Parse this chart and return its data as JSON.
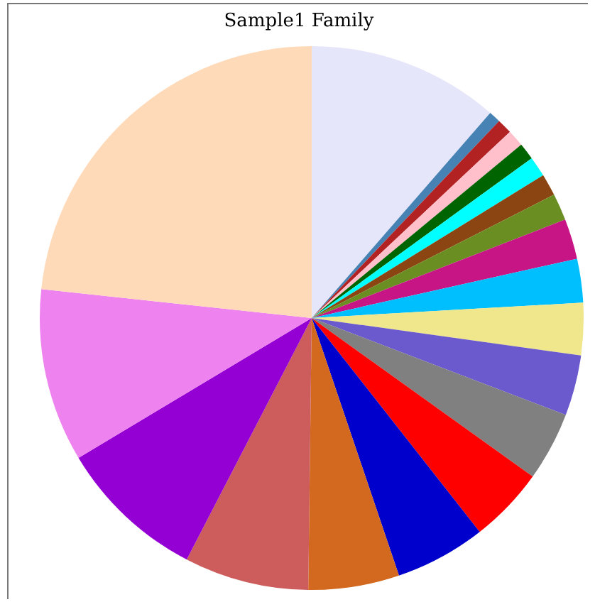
{
  "chart_data": {
    "type": "pie",
    "title": "Sample1 Family",
    "categories": [
      null,
      null,
      null,
      null,
      null,
      null,
      null,
      null,
      null,
      null,
      null,
      null,
      null,
      null,
      null,
      null,
      null,
      null,
      null,
      null
    ],
    "values": [
      11.4,
      0.7,
      0.9,
      1,
      1,
      1.2,
      1.3,
      1.6,
      2.4,
      2.6,
      3.1,
      3.6,
      4.1,
      4.5,
      5.4,
      5.4,
      7.4,
      8.8,
      10.3,
      23.3
    ],
    "colors": [
      "#e6e6fa",
      "#4682b4",
      "#b22222",
      "#ffc0cb",
      "#006400",
      "#00ffff",
      "#8b4513",
      "#6b8e23",
      "#c71585",
      "#00bfff",
      "#f0e68c",
      "#6a5acd",
      "#808080",
      "#ff0000",
      "#0000cd",
      "#d2691e",
      "#cd5c5c",
      "#9400d3",
      "#ee82ee",
      "#ffdab9"
    ],
    "legend": false
  }
}
